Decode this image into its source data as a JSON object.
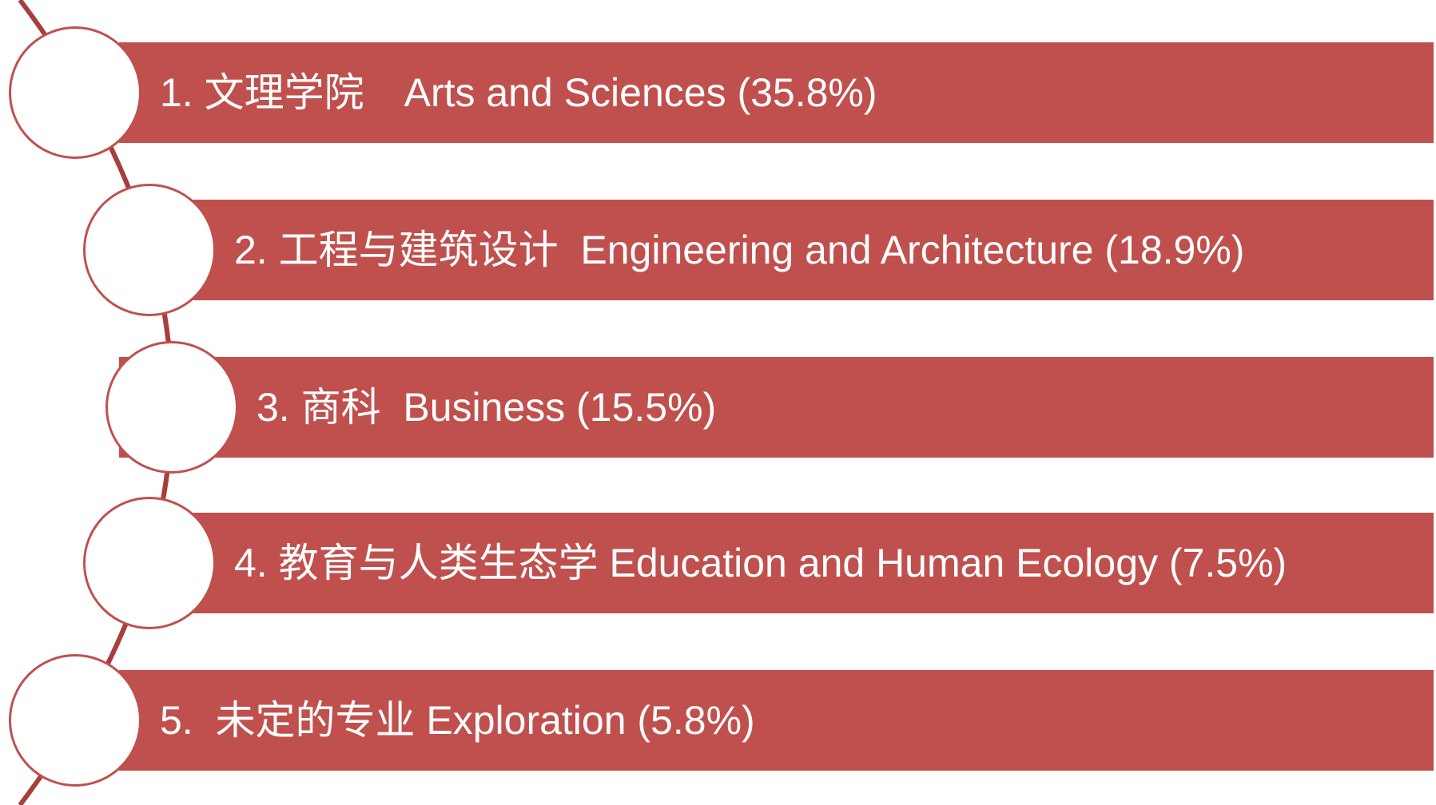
{
  "items": [
    {
      "text": "1. 文理学院　Arts and Sciences (35.8%)"
    },
    {
      "text": "2. 工程与建筑设计  Engineering and Architecture (18.9%)"
    },
    {
      "text": "3. 商科  Business (15.5%)"
    },
    {
      "text": "4. 教育与人类生态学 Education and Human Ecology (7.5%)"
    },
    {
      "text": "5.  未定的专业 Exploration (5.8%)"
    }
  ]
}
